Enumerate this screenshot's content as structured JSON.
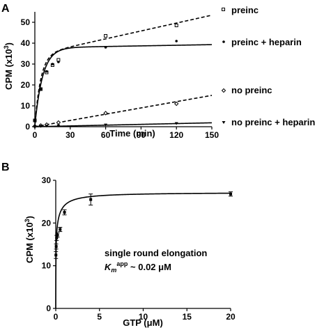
{
  "chart_data": [
    {
      "type": "scatter",
      "panel_label": "A",
      "xlabel": "Time (min)",
      "ylabel_main": "CPM (x10",
      "ylabel_sup": "3",
      "ylabel_tail": ")",
      "xlim": [
        0,
        150
      ],
      "ylim": [
        0,
        55
      ],
      "xticks": [
        0,
        30,
        60,
        90,
        120,
        150
      ],
      "yticks": [
        0,
        10,
        20,
        30,
        40,
        50
      ],
      "grid": false,
      "legend": "right",
      "series": [
        {
          "name": "preinc",
          "marker": "square-open",
          "line": "dashed",
          "x": [
            0,
            5,
            10,
            15,
            20,
            60,
            120
          ],
          "y": [
            3,
            18,
            26,
            29.5,
            32,
            43.5,
            48.5
          ],
          "fit": "burst-linear",
          "fit_params": {
            "a": 34,
            "k": 0.2,
            "m": 0.126,
            "c": 0.5
          }
        },
        {
          "name": "preinc + heparin",
          "marker": "dot",
          "line": "solid",
          "x": [
            0,
            5,
            10,
            15,
            20,
            60,
            120
          ],
          "y": [
            3,
            18,
            26.5,
            30,
            31,
            38,
            41
          ],
          "fit": "burst-linear",
          "fit_params": {
            "a": 37.3,
            "k": 0.15,
            "m": 0.01,
            "c": 0.5
          }
        },
        {
          "name": "no preinc",
          "marker": "diamond-open",
          "line": "dashed",
          "x": [
            0,
            5,
            10,
            20,
            60,
            120
          ],
          "y": [
            0.2,
            0.6,
            1,
            2,
            6.5,
            11
          ],
          "fit": "linear",
          "fit_params": {
            "m": 0.1,
            "c": 0
          }
        },
        {
          "name": "no preinc + heparin",
          "marker": "triangle-down",
          "line": "solid",
          "x": [
            0,
            5,
            10,
            20,
            60,
            120
          ],
          "y": [
            0.1,
            0.2,
            0.3,
            0.4,
            0.8,
            1.5
          ],
          "fit": "linear",
          "fit_params": {
            "m": 0.0125,
            "c": 0
          }
        }
      ]
    },
    {
      "type": "scatter",
      "panel_label": "B",
      "xlabel_main": "GTP (",
      "xlabel_mu": "μ",
      "xlabel_tail": "M)",
      "ylabel_main": "CPM (x10",
      "ylabel_sup": "3",
      "ylabel_tail": ")",
      "xlim": [
        0,
        20
      ],
      "ylim": [
        0,
        30
      ],
      "xticks": [
        0,
        5,
        10,
        15,
        20
      ],
      "yticks": [
        0,
        10,
        20,
        30
      ],
      "grid": false,
      "annotation_line1": "single round elongation",
      "annotation_km_k": "K",
      "annotation_km_m": "m",
      "annotation_km_sup": "app",
      "annotation_km_value": " ~ 0.02 ",
      "annotation_km_mu": "μ",
      "annotation_km_unit": "M",
      "series": [
        {
          "x": [
            0.02,
            0.05,
            0.1,
            0.2,
            0.5,
            1,
            4,
            20
          ],
          "y": [
            12.5,
            14.5,
            16.5,
            17.2,
            18.5,
            22.5,
            25.5,
            26.8
          ],
          "yerr": [
            0.8,
            0.6,
            0.6,
            0.5,
            0.5,
            0.6,
            1.3,
            0.5
          ],
          "fit": "michaelis-menten",
          "fit_params": {
            "vmax": 27.2,
            "km": 0.02,
            "k2": 0.5,
            "weight": 0.7
          }
        }
      ]
    }
  ]
}
